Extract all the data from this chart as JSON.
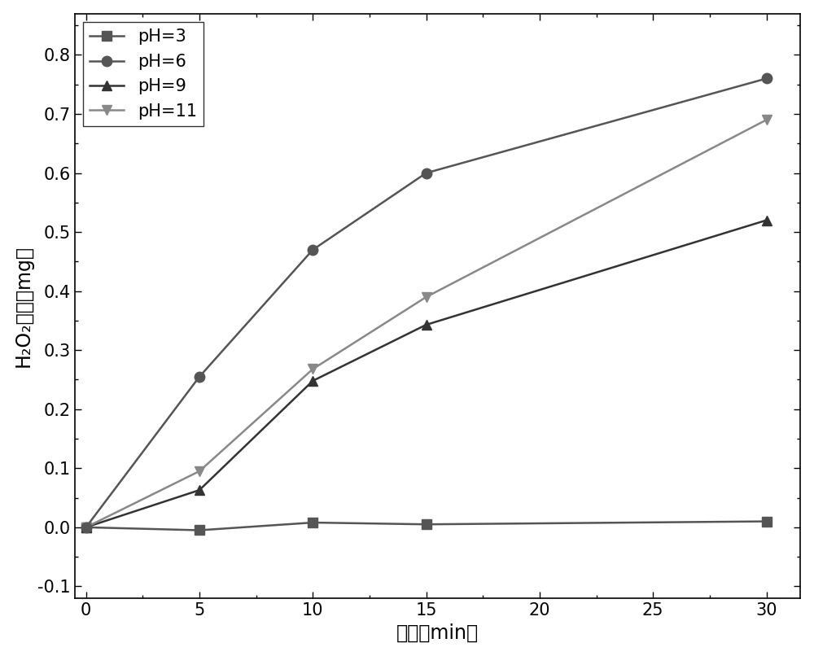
{
  "series": [
    {
      "label": "pH=3",
      "x": [
        0,
        5,
        10,
        15,
        30
      ],
      "y": [
        0.0,
        -0.005,
        0.008,
        0.005,
        0.01
      ],
      "color": "#555555",
      "marker": "s",
      "markersize": 9,
      "linewidth": 1.8,
      "zorder": 3
    },
    {
      "label": "pH=6",
      "x": [
        0,
        5,
        10,
        15,
        30
      ],
      "y": [
        0.0,
        0.255,
        0.47,
        0.6,
        0.76
      ],
      "color": "#555555",
      "marker": "o",
      "markersize": 9,
      "linewidth": 1.8,
      "zorder": 4
    },
    {
      "label": "pH=9",
      "x": [
        0,
        5,
        10,
        15,
        30
      ],
      "y": [
        0.0,
        0.063,
        0.248,
        0.343,
        0.52
      ],
      "color": "#333333",
      "marker": "^",
      "markersize": 9,
      "linewidth": 1.8,
      "zorder": 3
    },
    {
      "label": "pH=11",
      "x": [
        0,
        5,
        10,
        15,
        30
      ],
      "y": [
        0.0,
        0.095,
        0.268,
        0.39,
        0.69
      ],
      "color": "#888888",
      "marker": "v",
      "markersize": 9,
      "linewidth": 1.8,
      "zorder": 3
    }
  ],
  "xlabel": "时间（min）",
  "ylabel": "H₂O₂产量（mg）",
  "xlim": [
    -0.5,
    31.5
  ],
  "ylim": [
    -0.12,
    0.87
  ],
  "xticks": [
    0,
    5,
    10,
    15,
    20,
    25,
    30
  ],
  "yticks": [
    -0.1,
    0.0,
    0.1,
    0.2,
    0.3,
    0.4,
    0.5,
    0.6,
    0.7,
    0.8
  ],
  "background_color": "#ffffff",
  "legend_loc": "upper left",
  "legend_fontsize": 15,
  "tick_fontsize": 15,
  "label_fontsize": 17
}
